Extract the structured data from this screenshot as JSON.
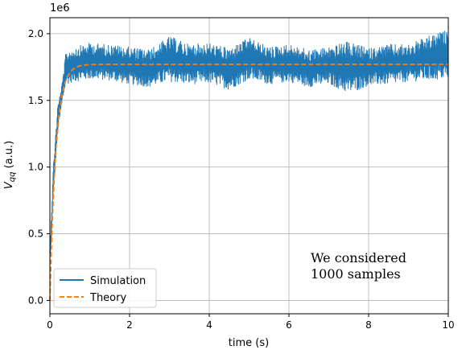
{
  "colors": {
    "simulation": "#1f77b4",
    "theory": "#ff7f0e",
    "grid": "#b0b0b0",
    "axis": "#000000"
  },
  "chart_data": {
    "type": "line",
    "title": "",
    "xlabel": "time (s)",
    "ylabel_main": "V",
    "ylabel_sub": "qq",
    "ylabel_unit": " (a.u.)",
    "y_offset_label": "1e6",
    "xlim": [
      0,
      10
    ],
    "ylim": [
      -0.1,
      2.12
    ],
    "x_ticks": [
      0,
      2,
      4,
      6,
      8,
      10
    ],
    "x_tick_labels": [
      "0",
      "2",
      "4",
      "6",
      "8",
      "10"
    ],
    "y_ticks": [
      0.0,
      0.5,
      1.0,
      1.5,
      2.0
    ],
    "y_tick_labels": [
      "0.0",
      "0.5",
      "1.0",
      "1.5",
      "2.0"
    ],
    "grid": true,
    "legend_position": "lower-left",
    "series": [
      {
        "name": "Simulation",
        "style": "solid",
        "description_values": {
          "steady_mean": 1.77,
          "band_low": 1.55,
          "band_high": 2.03,
          "rise_time_constant": 0.18
        },
        "envelope": {
          "x": [
            0.0,
            0.1,
            0.2,
            0.3,
            0.4,
            0.6,
            1.0,
            1.5,
            2.0,
            2.5,
            3.0,
            3.5,
            4.0,
            4.5,
            5.0,
            5.5,
            6.0,
            6.5,
            7.0,
            7.5,
            8.0,
            8.5,
            9.0,
            9.5,
            10.0
          ],
          "low": [
            0.2,
            0.85,
            1.25,
            1.45,
            1.62,
            1.64,
            1.66,
            1.65,
            1.62,
            1.6,
            1.64,
            1.62,
            1.63,
            1.58,
            1.66,
            1.62,
            1.64,
            1.6,
            1.62,
            1.55,
            1.61,
            1.62,
            1.64,
            1.65,
            1.66
          ],
          "high": [
            0.45,
            1.1,
            1.48,
            1.62,
            1.86,
            1.9,
            1.93,
            1.92,
            1.9,
            1.88,
            1.98,
            1.92,
            1.93,
            1.89,
            1.97,
            1.9,
            1.92,
            1.88,
            1.9,
            1.94,
            1.89,
            1.92,
            1.92,
            1.98,
            2.03
          ]
        }
      },
      {
        "name": "Theory",
        "style": "dashed",
        "model": {
          "type": "exponential_rise",
          "asymptote": 1.77,
          "tau": 0.15
        }
      }
    ],
    "annotation": {
      "lines": [
        "We considered",
        "1000 samples"
      ],
      "x": 6.5,
      "y": 0.26
    }
  }
}
